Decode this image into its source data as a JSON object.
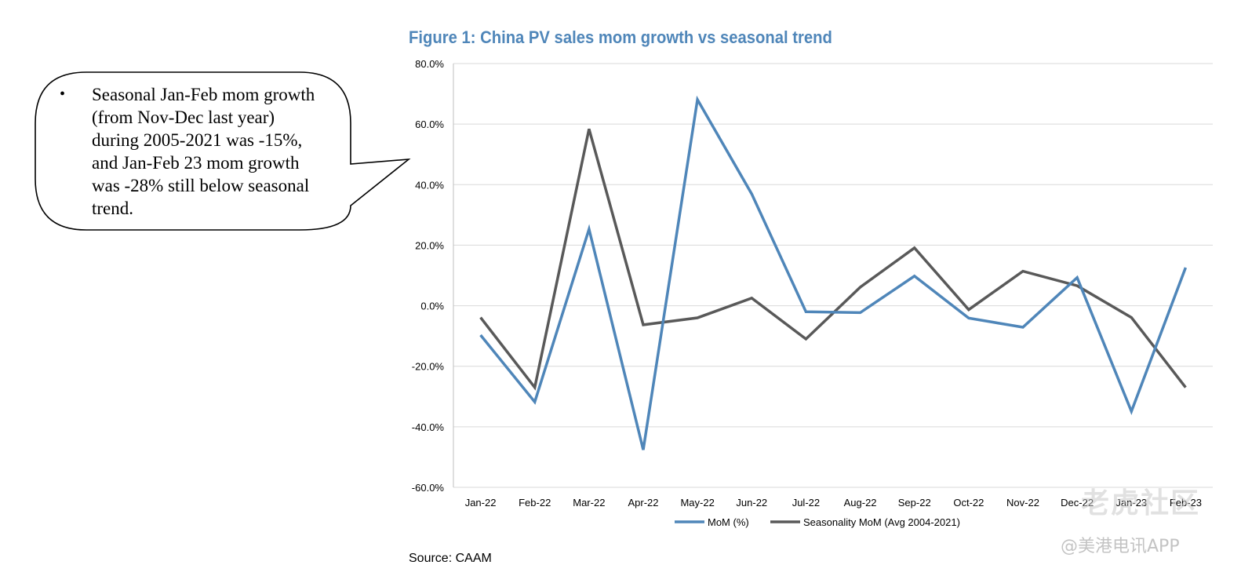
{
  "chart_data": {
    "type": "line",
    "title": "Figure 1: China PV sales mom growth vs seasonal trend",
    "categories": [
      "Jan-22",
      "Feb-22",
      "Mar-22",
      "Apr-22",
      "May-22",
      "Jun-22",
      "Jul-22",
      "Aug-22",
      "Sep-22",
      "Oct-22",
      "Nov-22",
      "Dec-22",
      "Jan-23",
      "Feb-23"
    ],
    "series": [
      {
        "name": "MoM (%)",
        "color": "#4f86b9",
        "values": [
          -9.7,
          -31.8,
          25.3,
          -47.6,
          68.1,
          36.9,
          -2.0,
          -2.3,
          9.8,
          -4.1,
          -7.1,
          9.3,
          -34.9,
          12.6
        ]
      },
      {
        "name": "Seasonality MoM (Avg 2004-2021)",
        "color": "#595959",
        "values": [
          -3.9,
          -27.0,
          58.4,
          -6.3,
          -4.0,
          2.5,
          -11.0,
          6.1,
          19.1,
          -1.3,
          11.4,
          6.6,
          -3.9,
          -27.0
        ]
      }
    ],
    "ylim": [
      -60,
      80
    ],
    "yticks": [
      80,
      60,
      40,
      20,
      0,
      -20,
      -40,
      -60
    ],
    "ytick_labels": [
      "80.0%",
      "60.0%",
      "40.0%",
      "20.0%",
      "0.0%",
      "-20.0%",
      "-40.0%",
      "-60.0%"
    ],
    "xlabel": "",
    "ylabel": "",
    "grid": "horizontal",
    "legend_position": "bottom"
  },
  "callout": {
    "bullet": "•",
    "text": "Seasonal Jan-Feb mom growth (from Nov-Dec last year) during 2005-2021 was -15%, and Jan-Feb 23 mom growth was -28% still below seasonal trend."
  },
  "source": "Source: CAAM",
  "watermark": {
    "primary": "老虎社区",
    "secondary": "@美港电讯APP"
  },
  "colors": {
    "title": "#4f86b9",
    "grid": "#d9d9d9",
    "axis": "#bfbfbf"
  }
}
